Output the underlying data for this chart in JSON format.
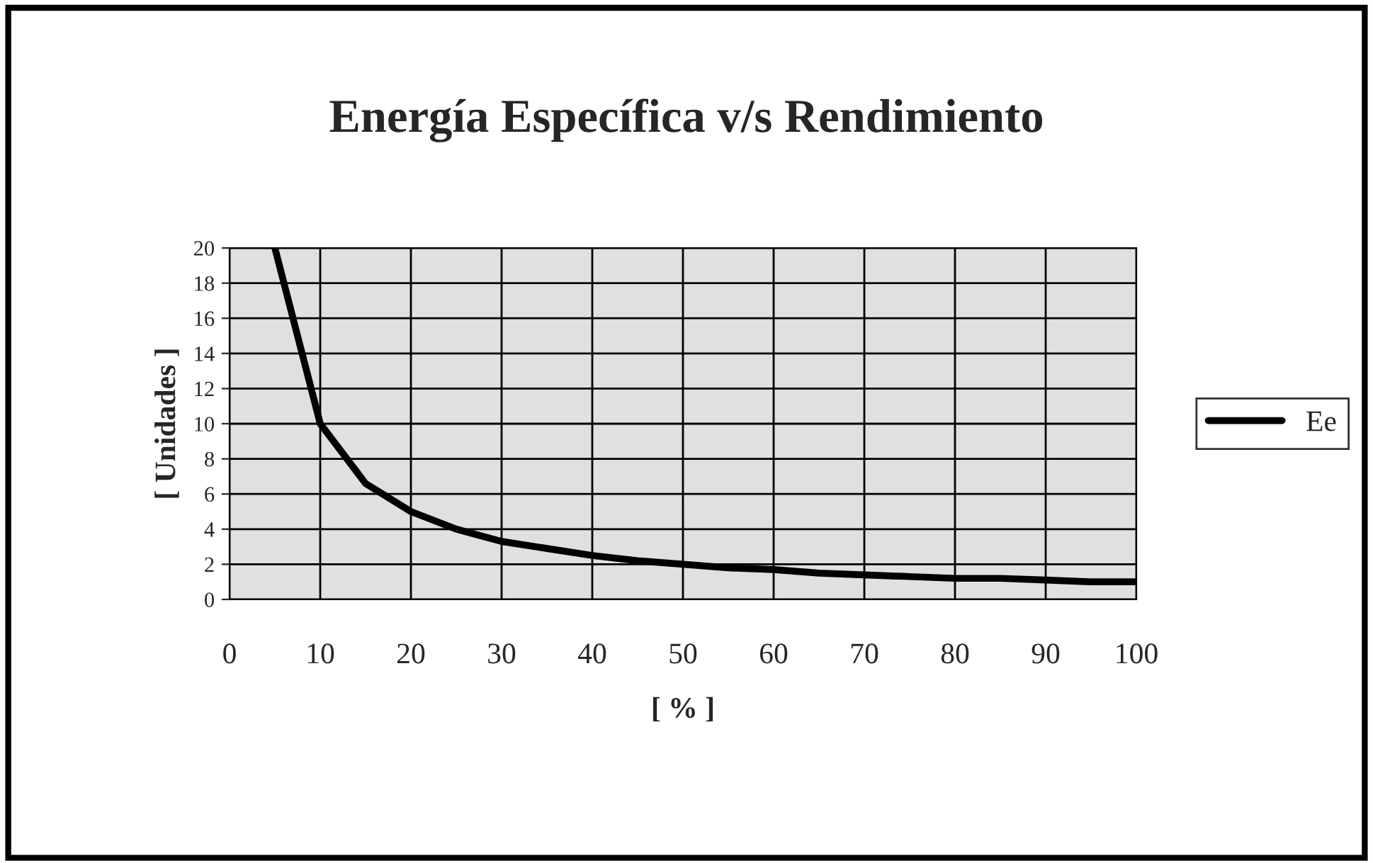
{
  "chart_data": {
    "type": "line",
    "title": "Energía Específica v/s Rendimiento",
    "xlabel": "[ % ]",
    "ylabel": "[ Unidades ]",
    "series": [
      {
        "name": "Ee",
        "color": "#000000",
        "x": [
          5,
          10,
          15,
          20,
          25,
          30,
          35,
          40,
          45,
          50,
          55,
          60,
          65,
          70,
          75,
          80,
          85,
          90,
          95,
          100
        ],
        "values": [
          20,
          10,
          6.6,
          5,
          4,
          3.3,
          2.9,
          2.5,
          2.2,
          2,
          1.8,
          1.7,
          1.5,
          1.4,
          1.3,
          1.2,
          1.2,
          1.1,
          1.0,
          1.0
        ]
      }
    ],
    "xlim": [
      0,
      100
    ],
    "xticks": [
      0,
      10,
      20,
      30,
      40,
      50,
      60,
      70,
      80,
      90,
      100
    ],
    "ylim": [
      0,
      20
    ],
    "yticks": [
      0,
      2,
      4,
      6,
      8,
      10,
      12,
      14,
      16,
      18,
      20
    ],
    "grid": true,
    "legend": "right",
    "marker": "none",
    "line_style": "solid"
  }
}
